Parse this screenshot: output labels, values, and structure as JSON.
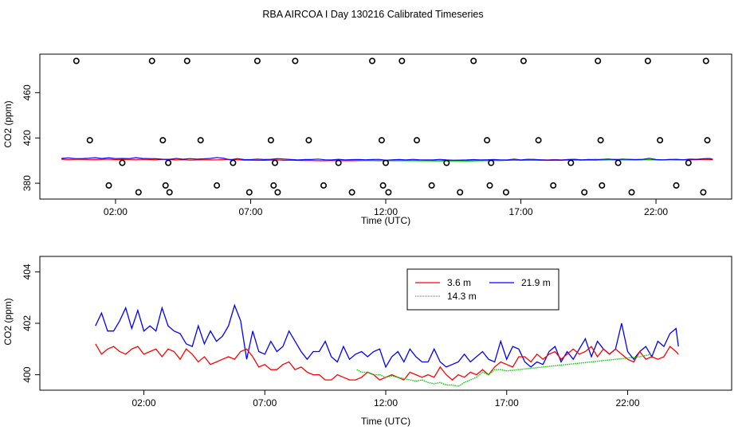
{
  "title": "RBA AIRCOA I  Day 130216  Calibrated Timeseries",
  "colors": {
    "red": "#ff0000",
    "blue": "#0000ff",
    "green": "#00cc00",
    "black": "#000000"
  },
  "chart_data": [
    {
      "type": "scatter",
      "xlabel": "Time (UTC)",
      "ylabel": "CO2 (ppm)",
      "xlim": [
        -0.8,
        24.8
      ],
      "ylim": [
        366,
        494
      ],
      "x_ticks": [
        {
          "value": 2,
          "label": "02:00"
        },
        {
          "value": 7,
          "label": "07:00"
        },
        {
          "value": 12,
          "label": "12:00"
        },
        {
          "value": 17,
          "label": "17:00"
        },
        {
          "value": 22,
          "label": "22:00"
        }
      ],
      "y_ticks": [
        {
          "value": 380,
          "label": "380"
        },
        {
          "value": 420,
          "label": "420"
        },
        {
          "value": 460,
          "label": "460"
        }
      ],
      "calibration_points": {
        "x": [
          0.55,
          1.05,
          1.75,
          2.25,
          2.85,
          3.35,
          3.75,
          3.85,
          3.95,
          4.0,
          4.65,
          5.15,
          5.75,
          6.35,
          6.95,
          7.25,
          7.75,
          7.85,
          7.9,
          8.0,
          8.65,
          9.15,
          9.7,
          10.25,
          10.75,
          11.5,
          11.85,
          11.9,
          12.0,
          12.1,
          12.6,
          13.15,
          13.7,
          14.25,
          14.75,
          15.25,
          15.75,
          15.85,
          15.9,
          16.45,
          17.1,
          17.65,
          18.2,
          18.85,
          19.35,
          19.85,
          19.95,
          20.0,
          20.6,
          21.1,
          21.7,
          22.15,
          22.75,
          23.2,
          23.75,
          23.85,
          23.9
        ]
      },
      "series": [
        {
          "name": "",
          "color": "blue"
        },
        {
          "name": "",
          "color": "red"
        },
        {
          "name": "",
          "color": "green"
        }
      ]
    },
    {
      "type": "line",
      "xlabel": "Time (UTC)",
      "ylabel": "CO2 (ppm)",
      "xlim": [
        -2.3,
        26.3
      ],
      "ylim": [
        399.4,
        404.6
      ],
      "x_ticks": [
        {
          "value": 2,
          "label": "02:00"
        },
        {
          "value": 7,
          "label": "07:00"
        },
        {
          "value": 12,
          "label": "12:00"
        },
        {
          "value": 17,
          "label": "17:00"
        },
        {
          "value": 22,
          "label": "22:00"
        }
      ],
      "y_ticks": [
        {
          "value": 400,
          "label": "400"
        },
        {
          "value": 402,
          "label": "402"
        },
        {
          "value": 404,
          "label": "404"
        }
      ],
      "legend": {
        "position": "top-center",
        "entries": [
          {
            "name": "3.6 m",
            "color": "red"
          },
          {
            "name": "21.9 m",
            "color": "blue"
          },
          {
            "name": "14.3 m",
            "color": "green"
          }
        ]
      },
      "series": [
        {
          "name": "21.9 m",
          "color": "blue",
          "x": [
            0.0,
            0.25,
            0.5,
            0.75,
            1.0,
            1.25,
            1.5,
            1.75,
            2.0,
            2.25,
            2.5,
            2.75,
            3.0,
            3.25,
            3.5,
            3.75,
            4.0,
            4.25,
            4.5,
            4.75,
            5.0,
            5.25,
            5.5,
            5.75,
            6.0,
            6.25,
            6.5,
            6.75,
            7.0,
            7.25,
            7.5,
            7.75,
            8.0,
            8.25,
            8.5,
            8.75,
            9.0,
            9.25,
            9.5,
            9.75,
            10.0,
            10.25,
            10.5,
            10.75,
            11.0,
            11.25,
            11.5,
            11.75,
            12.0,
            12.25,
            12.5,
            12.75,
            13.0,
            13.25,
            13.5,
            13.75,
            14.0,
            14.25,
            14.5,
            14.75,
            15.0,
            15.25,
            15.5,
            15.75,
            16.0,
            16.25,
            16.5,
            16.75,
            17.0,
            17.25,
            17.5,
            17.75,
            18.0,
            18.25,
            18.5,
            18.75,
            19.0,
            19.25,
            19.5,
            19.75,
            20.0,
            20.25,
            20.5,
            20.75,
            21.0,
            21.25,
            21.5,
            21.75,
            22.0,
            22.25,
            22.5,
            22.75,
            23.0,
            23.25,
            23.5,
            23.75,
            24.0,
            24.1
          ],
          "y": [
            401.9,
            402.4,
            401.7,
            401.7,
            402.1,
            402.6,
            401.8,
            402.5,
            401.7,
            401.9,
            401.7,
            402.6,
            401.9,
            401.7,
            401.6,
            401.2,
            401.1,
            401.9,
            401.2,
            401.7,
            401.3,
            401.5,
            401.9,
            402.7,
            402.1,
            400.6,
            401.7,
            400.9,
            400.8,
            401.3,
            400.9,
            401.1,
            401.7,
            401.3,
            400.9,
            400.6,
            400.9,
            400.9,
            401.3,
            400.7,
            400.5,
            401.1,
            400.6,
            400.8,
            400.9,
            400.7,
            400.9,
            401.0,
            400.3,
            400.7,
            400.9,
            400.5,
            401.0,
            400.7,
            400.5,
            400.5,
            401.0,
            400.5,
            400.3,
            400.4,
            400.5,
            400.8,
            400.5,
            400.7,
            400.9,
            400.6,
            400.5,
            401.3,
            400.6,
            401.1,
            401.0,
            400.5,
            400.3,
            400.5,
            400.4,
            400.9,
            401.1,
            400.5,
            400.9,
            400.6,
            401.0,
            401.4,
            400.7,
            401.3,
            401.0,
            400.8,
            401.0,
            402.0,
            400.9,
            400.6,
            400.9,
            401.1,
            400.7,
            401.3,
            401.1,
            401.6,
            401.8,
            401.1
          ],
          "x2": [
            12.0,
            12.25,
            12.5,
            12.75,
            13.0,
            13.25,
            13.5,
            13.75,
            14.0,
            14.25,
            14.5,
            14.75,
            15.0,
            15.25,
            15.5,
            15.75,
            16.0,
            16.25,
            16.5,
            16.75,
            17.0,
            17.25,
            17.5,
            17.75,
            18.0,
            18.25,
            18.5,
            18.75,
            19.0,
            19.25,
            19.5,
            19.75,
            20.0,
            20.25,
            20.5,
            20.75,
            21.0,
            21.25,
            21.5,
            21.75,
            22.0,
            22.25,
            22.5,
            22.75,
            23.0,
            23.25,
            23.5,
            23.75,
            24.0,
            24.1
          ],
          "y2": [
            400.1,
            400.4,
            400.2,
            400.1,
            400.0,
            399.9,
            400.0,
            400.3,
            400.0,
            400.1,
            400.0,
            400.2,
            400.2,
            400.3,
            400.1,
            400.4,
            400.2,
            400.3,
            400.1,
            400.2,
            400.3,
            400.1,
            400.0,
            400.1,
            400.2,
            399.9,
            400.0,
            400.0,
            399.9,
            400.1,
            400.0,
            399.9,
            399.8,
            400.0,
            400.0,
            399.8,
            399.9,
            400.1,
            400.0,
            399.9,
            400.2,
            400.1,
            400.0,
            400.3,
            400.0,
            400.1,
            400.0,
            400.0,
            400.0,
            400.0
          ]
        },
        {
          "name": "3.6 m",
          "color": "red",
          "x": [
            0.0,
            0.25,
            0.5,
            0.75,
            1.0,
            1.25,
            1.5,
            1.75,
            2.0,
            2.25,
            2.5,
            2.75,
            3.0,
            3.25,
            3.5,
            3.75,
            4.0,
            4.25,
            4.5,
            4.75,
            5.0,
            5.25,
            5.5,
            5.75,
            6.0,
            6.25,
            6.5,
            6.75,
            7.0,
            7.25,
            7.5,
            7.75,
            8.0,
            8.25,
            8.5,
            8.75,
            9.0,
            9.25,
            9.5,
            9.75,
            10.0,
            10.25,
            10.5,
            10.75,
            11.0,
            11.25,
            11.5,
            11.75,
            12.0,
            12.25,
            12.5,
            12.75,
            13.0,
            13.25,
            13.5,
            13.75,
            14.0,
            14.25,
            14.5,
            14.75,
            15.0,
            15.25,
            15.5,
            15.75,
            16.0,
            16.25,
            16.5,
            16.75,
            17.0,
            17.25,
            17.5,
            17.75,
            18.0,
            18.25,
            18.5,
            18.75,
            19.0,
            19.25,
            19.5,
            19.75,
            20.0,
            20.25,
            20.5,
            20.75,
            21.0,
            21.25,
            21.5,
            21.75,
            22.0,
            22.25,
            22.5,
            22.75,
            23.0,
            23.25,
            23.5,
            23.75,
            24.0,
            24.1
          ],
          "y": [
            401.2,
            400.8,
            401.0,
            401.1,
            400.9,
            400.8,
            401.0,
            401.1,
            400.8,
            400.9,
            401.0,
            400.7,
            401.0,
            400.9,
            400.6,
            401.0,
            400.8,
            400.5,
            400.7,
            400.4,
            400.5,
            400.6,
            400.7,
            400.6,
            400.9,
            401.0,
            400.7,
            400.3,
            400.4,
            400.2,
            400.2,
            400.4,
            400.5,
            400.2,
            400.3,
            400.1,
            400.0,
            400.0,
            399.8,
            399.8,
            400.0,
            399.9,
            399.8,
            399.8,
            399.9,
            400.1,
            400.0,
            399.8,
            399.9,
            400.0,
            399.9,
            399.8,
            400.1,
            400.0,
            399.9,
            400.0,
            399.9,
            400.3,
            400.0,
            399.8,
            400.0,
            399.9,
            400.1,
            400.0,
            400.2,
            400.0,
            400.3,
            400.5,
            400.4,
            400.3,
            400.7,
            400.7,
            400.5,
            400.8,
            400.6,
            400.8,
            400.9,
            400.6,
            400.8,
            401.0,
            400.8,
            400.9,
            401.1,
            400.7,
            401.0,
            400.8,
            401.0,
            400.8,
            400.6,
            400.5,
            400.9,
            400.6,
            400.7,
            400.6,
            400.7,
            401.1,
            400.9,
            400.8
          ]
        },
        {
          "name": "14.3 m",
          "color": "green",
          "x": [
            10.8,
            11.0,
            11.25,
            11.5,
            11.75,
            12.0,
            12.25,
            12.5,
            12.75,
            13.0,
            13.25,
            13.5,
            13.75,
            14.0,
            14.25,
            14.5,
            14.75,
            15.0,
            15.25,
            15.5,
            15.75,
            16.0,
            16.25,
            16.5,
            16.75,
            17.0,
            17.5,
            18.0,
            18.5,
            19.0,
            19.5,
            20.0,
            20.5,
            21.0,
            21.5,
            22.0,
            22.5,
            23.0
          ],
          "y": [
            400.2,
            400.1,
            400.1,
            400.0,
            400.0,
            399.9,
            399.95,
            399.9,
            399.85,
            399.8,
            399.75,
            399.8,
            399.7,
            399.65,
            399.7,
            399.6,
            399.6,
            399.55,
            399.7,
            399.8,
            399.9,
            400.1,
            400.0,
            400.2,
            400.2,
            400.15,
            400.2,
            400.25,
            400.3,
            400.35,
            400.4,
            400.45,
            400.5,
            400.55,
            400.6,
            400.65,
            400.7,
            400.8
          ]
        }
      ]
    }
  ]
}
